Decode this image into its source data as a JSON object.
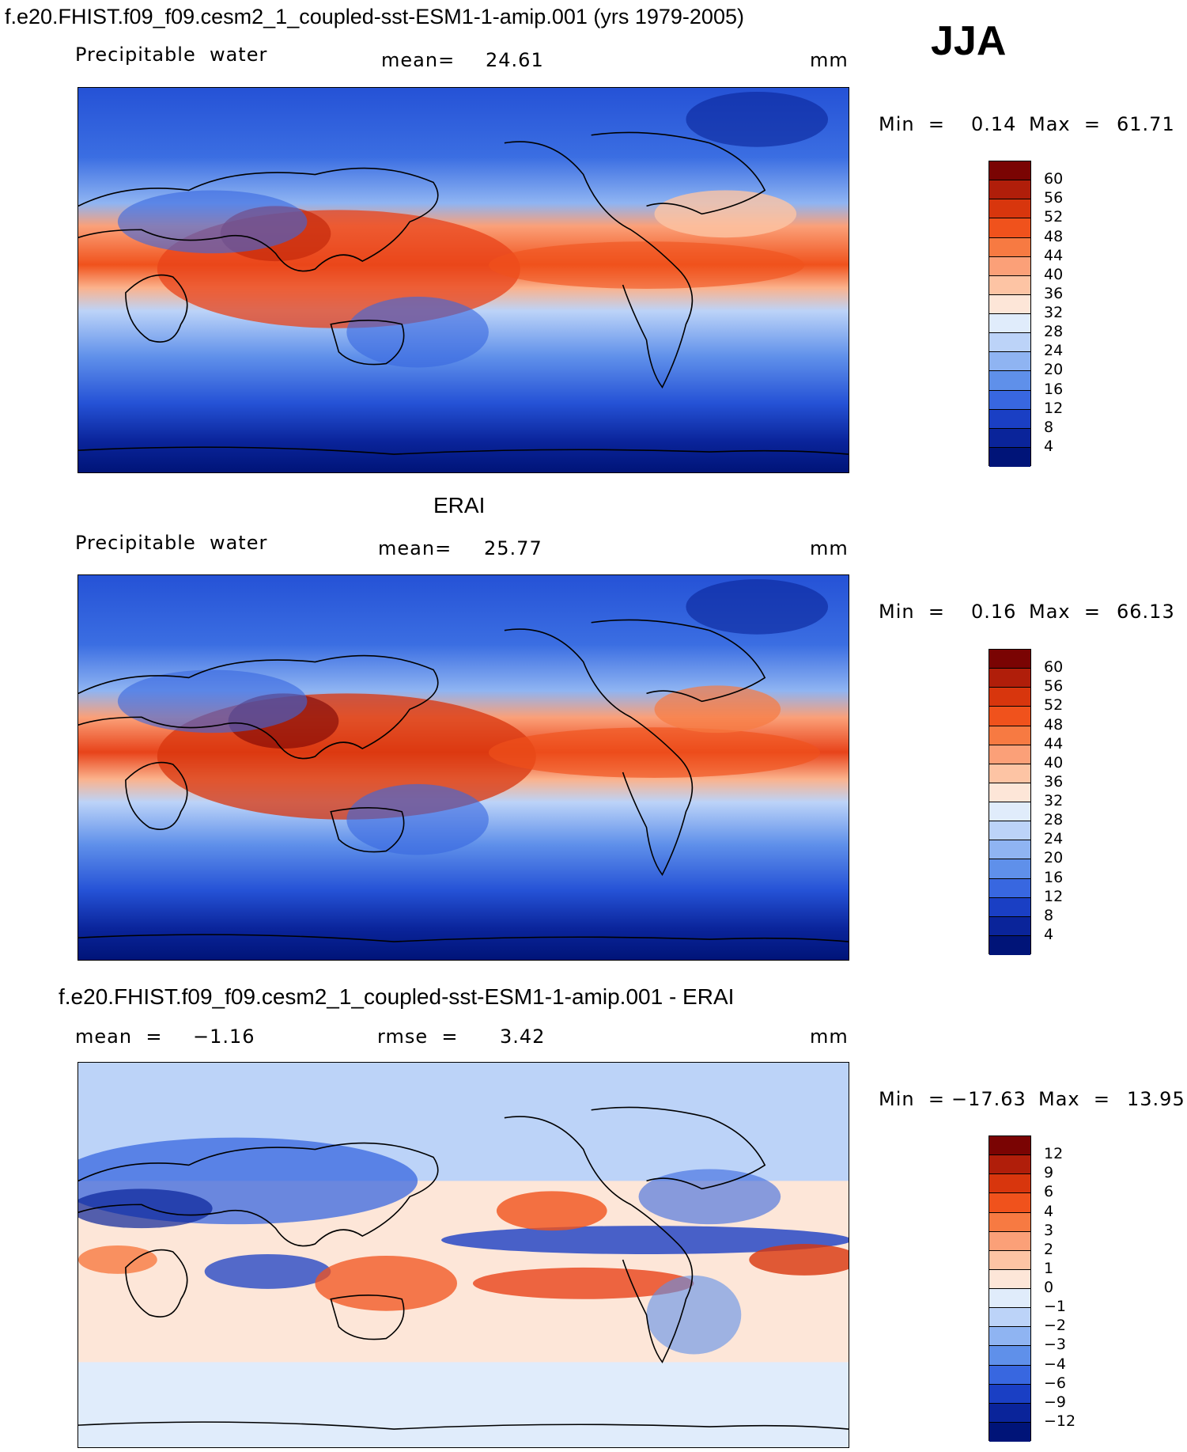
{
  "header": {
    "case_title": "f.e20.FHIST.f09_f09.cesm2_1_coupled-sst-ESM1-1-amip.001 (yrs 1979-2005)",
    "season": "JJA"
  },
  "panel1": {
    "variable": "Precipitable  water",
    "mean_label": "mean=",
    "mean_value": "24.61",
    "units": "mm",
    "min_label": "Min  =",
    "min_value": "0.14",
    "max_label": "Max  =",
    "max_value": "61.71",
    "colorbar_labels": [
      "60",
      "56",
      "52",
      "48",
      "44",
      "40",
      "36",
      "32",
      "28",
      "24",
      "20",
      "16",
      "12",
      "8",
      "4"
    ]
  },
  "panel2": {
    "title": "ERAI",
    "variable": "Precipitable  water",
    "mean_label": "mean=",
    "mean_value": "25.77",
    "units": "mm",
    "min_label": "Min  =",
    "min_value": "0.16",
    "max_label": "Max  =",
    "max_value": "66.13",
    "colorbar_labels": [
      "60",
      "56",
      "52",
      "48",
      "44",
      "40",
      "36",
      "32",
      "28",
      "24",
      "20",
      "16",
      "12",
      "8",
      "4"
    ]
  },
  "panel3": {
    "title": "f.e20.FHIST.f09_f09.cesm2_1_coupled-sst-ESM1-1-amip.001 - ERAI",
    "mean_label": "mean  =",
    "mean_value": "−1.16",
    "rmse_label": "rmse  =",
    "rmse_value": "3.42",
    "units": "mm",
    "min_label": "Min  =",
    "min_value": "−17.63",
    "max_label": "Max  =",
    "max_value": "13.95",
    "colorbar_labels": [
      "12",
      "9",
      "6",
      "4",
      "3",
      "2",
      "1",
      "0",
      "−1",
      "−2",
      "−3",
      "−4",
      "−6",
      "−9",
      "−12"
    ]
  },
  "colors": {
    "abs_scale": [
      "#7a0403",
      "#b01e0a",
      "#d8360d",
      "#f0521c",
      "#f77a42",
      "#fba078",
      "#fdc4a4",
      "#fde6d8",
      "#e0ecfb",
      "#bcd3f8",
      "#8fb4f2",
      "#5f90ea",
      "#3867e0",
      "#1a3fc4",
      "#0a249a",
      "#001478"
    ],
    "diff_scale": [
      "#7a0403",
      "#b01e0a",
      "#d8360d",
      "#f0521c",
      "#f77a42",
      "#fba078",
      "#fdc4a4",
      "#fde6d8",
      "#e0ecfb",
      "#bcd3f8",
      "#8fb4f2",
      "#5f90ea",
      "#3867e0",
      "#1a3fc4",
      "#0a249a",
      "#001478"
    ]
  }
}
